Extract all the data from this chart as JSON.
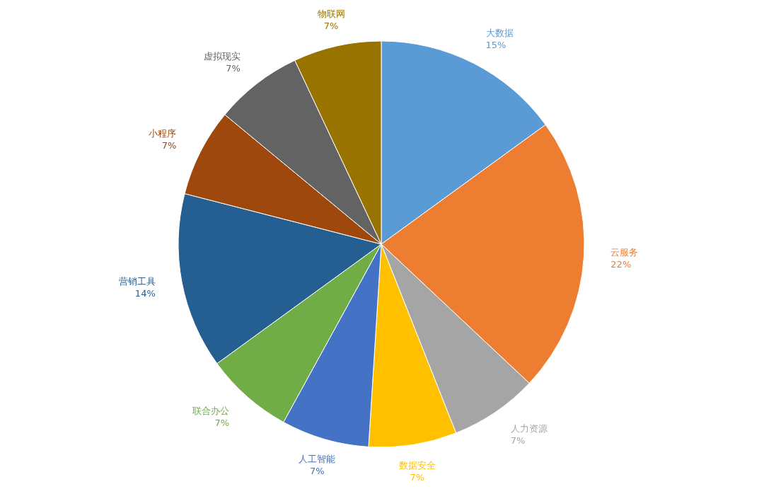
{
  "chart_data": {
    "type": "pie",
    "categories": [
      "大数据",
      "云服务",
      "人力资源",
      "数据安全",
      "人工智能",
      "联合办公",
      "营销工具",
      "小程序",
      "虚拟现实",
      "物联网"
    ],
    "values": [
      15,
      22,
      7,
      7,
      7,
      7,
      14,
      7,
      7,
      7
    ],
    "colors": [
      "#5b9bd5",
      "#ed7d31",
      "#a5a5a5",
      "#ffc000",
      "#4472c4",
      "#70ad47",
      "#255e91",
      "#9e480e",
      "#636363",
      "#997300"
    ],
    "value_labels": [
      "15%",
      "22%",
      "7%",
      "7%",
      "7%",
      "7%",
      "14%",
      "7%",
      "7%",
      "7%"
    ]
  }
}
